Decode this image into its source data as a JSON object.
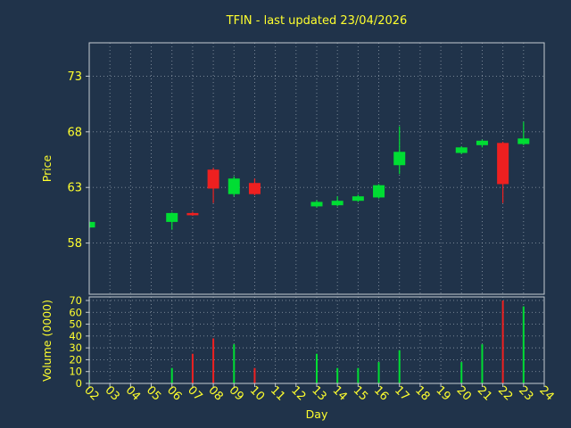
{
  "title": "TFIN - last updated 23/04/2026",
  "colors": {
    "background": "#20334a",
    "up": "#00dd33",
    "down": "#ee2020",
    "text": "#ffff2e",
    "grid": "#b8c2cc",
    "spine": "#c6ccd2"
  },
  "chart_data": [
    {
      "type": "candlestick",
      "title": "TFIN - last updated 23/04/2026",
      "xlabel": "Day",
      "ylabel": "Price",
      "ylim": [
        53.4,
        76.0
      ],
      "yticks": [
        58,
        63,
        68,
        73
      ],
      "x_ticks": [
        "02",
        "03",
        "04",
        "05",
        "06",
        "07",
        "08",
        "09",
        "10",
        "11",
        "12",
        "13",
        "14",
        "15",
        "16",
        "17",
        "18",
        "19",
        "20",
        "21",
        "22",
        "23",
        "24"
      ],
      "grid": true,
      "legend": "none",
      "candles": [
        {
          "day": "02",
          "open": 59.4,
          "high": 59.95,
          "low": 59.3,
          "close": 59.9
        },
        {
          "day": "06",
          "open": 59.9,
          "high": 60.75,
          "low": 59.2,
          "close": 60.7
        },
        {
          "day": "07",
          "open": 60.7,
          "high": 60.8,
          "low": 60.45,
          "close": 60.5
        },
        {
          "day": "08",
          "open": 64.6,
          "high": 64.75,
          "low": 61.6,
          "close": 62.9
        },
        {
          "day": "09",
          "open": 62.4,
          "high": 64.0,
          "low": 62.2,
          "close": 63.8
        },
        {
          "day": "10",
          "open": 63.4,
          "high": 63.8,
          "low": 62.3,
          "close": 62.4
        },
        {
          "day": "13",
          "open": 61.3,
          "high": 61.85,
          "low": 61.2,
          "close": 61.7
        },
        {
          "day": "14",
          "open": 61.4,
          "high": 62.2,
          "low": 61.3,
          "close": 61.8
        },
        {
          "day": "15",
          "open": 61.8,
          "high": 62.35,
          "low": 61.7,
          "close": 62.2
        },
        {
          "day": "16",
          "open": 62.1,
          "high": 63.3,
          "low": 62.0,
          "close": 63.2
        },
        {
          "day": "17",
          "open": 65.0,
          "high": 68.5,
          "low": 64.2,
          "close": 66.2
        },
        {
          "day": "20",
          "open": 66.1,
          "high": 66.7,
          "low": 66.0,
          "close": 66.6
        },
        {
          "day": "21",
          "open": 66.8,
          "high": 67.3,
          "low": 66.6,
          "close": 67.2
        },
        {
          "day": "22",
          "open": 67.0,
          "high": 67.1,
          "low": 61.6,
          "close": 63.3
        },
        {
          "day": "23",
          "open": 66.9,
          "high": 68.9,
          "low": 66.8,
          "close": 67.4
        }
      ]
    },
    {
      "type": "bar",
      "xlabel": "Day",
      "ylabel": "Volume (0000)",
      "ylim": [
        0,
        73
      ],
      "yticks": [
        0,
        10,
        20,
        30,
        40,
        50,
        60,
        70
      ],
      "grid": true,
      "legend": "none",
      "bars": [
        {
          "day": "02",
          "value": 3,
          "direction": "up"
        },
        {
          "day": "06",
          "value": 13,
          "direction": "up"
        },
        {
          "day": "07",
          "value": 25,
          "direction": "down"
        },
        {
          "day": "08",
          "value": 38,
          "direction": "down"
        },
        {
          "day": "09",
          "value": 33,
          "direction": "up"
        },
        {
          "day": "10",
          "value": 13,
          "direction": "down"
        },
        {
          "day": "13",
          "value": 25,
          "direction": "up"
        },
        {
          "day": "14",
          "value": 13,
          "direction": "up"
        },
        {
          "day": "15",
          "value": 13,
          "direction": "up"
        },
        {
          "day": "16",
          "value": 18,
          "direction": "up"
        },
        {
          "day": "17",
          "value": 28,
          "direction": "up"
        },
        {
          "day": "20",
          "value": 18,
          "direction": "up"
        },
        {
          "day": "21",
          "value": 33,
          "direction": "up"
        },
        {
          "day": "22",
          "value": 70,
          "direction": "down"
        },
        {
          "day": "23",
          "value": 65,
          "direction": "up"
        }
      ]
    }
  ]
}
